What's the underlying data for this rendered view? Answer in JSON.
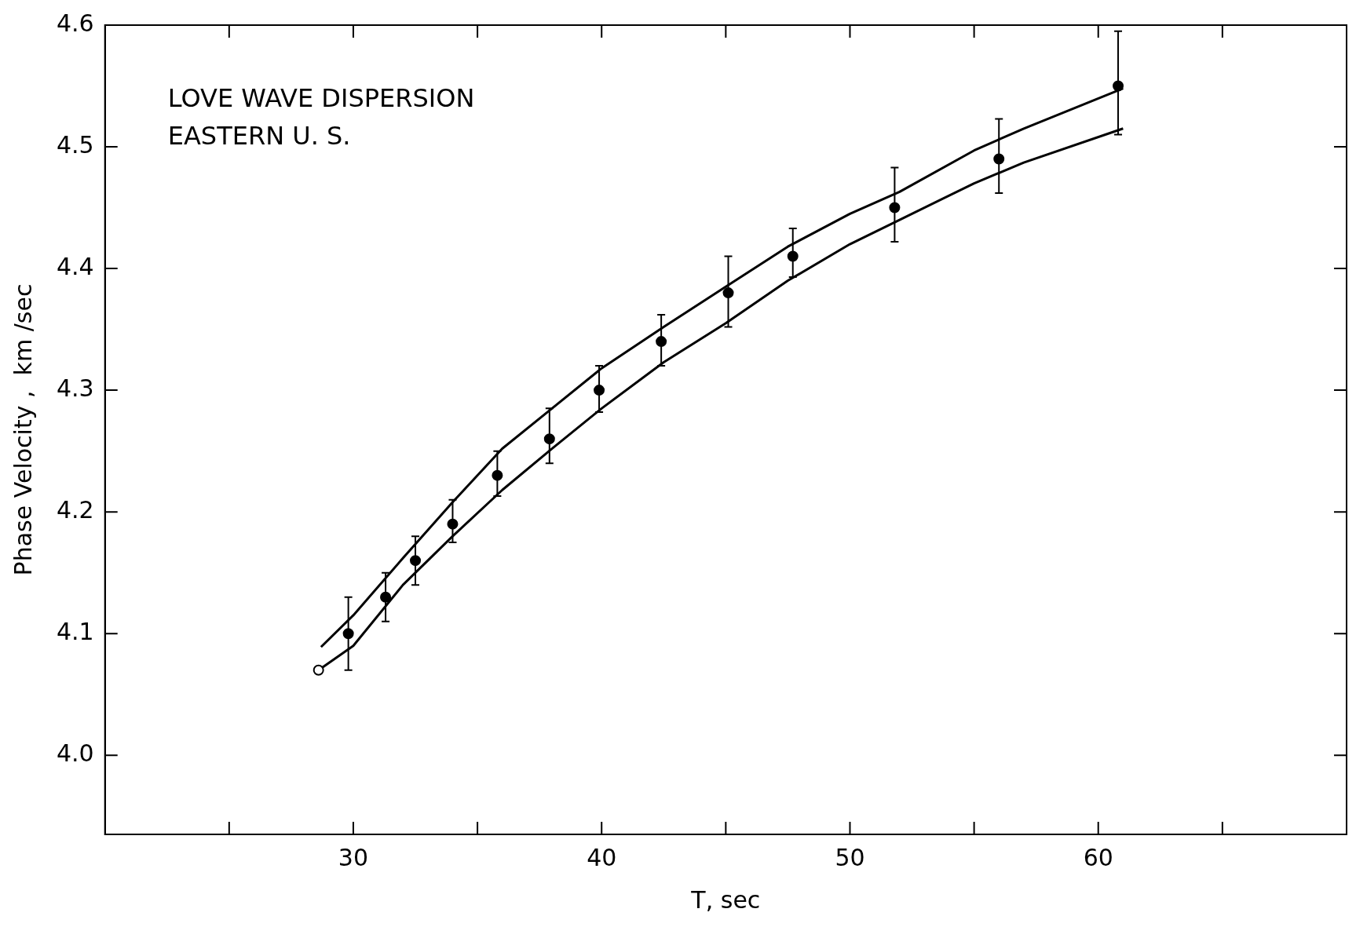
{
  "chart_data": {
    "type": "scatter",
    "xlabel": "T, sec",
    "ylabel": "Phase Velocity ,  km /sec",
    "annotations": [
      "LOVE WAVE DISPERSION",
      "EASTERN U. S."
    ],
    "xlim": [
      20,
      70
    ],
    "ylim": [
      3.935,
      4.6
    ],
    "xticks": [
      {
        "value": 25,
        "label": null
      },
      30,
      {
        "value": 35,
        "label": null
      },
      40,
      {
        "value": 45,
        "label": null
      },
      50,
      {
        "value": 55,
        "label": null
      },
      60,
      {
        "value": 65,
        "label": null
      }
    ],
    "yticks": [
      {
        "value": 4.0,
        "label": "4.0"
      },
      4.1,
      4.2,
      4.3,
      4.4,
      4.5,
      4.6
    ],
    "grid": false,
    "legend": false,
    "marker": "circle",
    "series": [
      {
        "color": "#000000",
        "x": [
          29.8,
          31.3,
          32.5,
          34.0,
          35.8,
          37.9,
          39.9,
          42.4,
          45.1,
          47.7,
          51.8,
          56.0,
          60.8
        ],
        "values": [
          4.1,
          4.13,
          4.16,
          4.19,
          4.23,
          4.26,
          4.3,
          4.34,
          4.38,
          4.41,
          4.45,
          4.49,
          4.55
        ],
        "errors": [
          [
            4.07,
            4.13
          ],
          [
            4.11,
            4.15
          ],
          [
            4.14,
            4.18
          ],
          [
            4.175,
            4.21
          ],
          [
            4.213,
            4.25
          ],
          [
            4.24,
            4.285
          ],
          [
            4.282,
            4.32
          ],
          [
            4.32,
            4.362
          ],
          [
            4.352,
            4.41
          ],
          [
            4.393,
            4.433
          ],
          [
            4.422,
            4.483
          ],
          [
            4.462,
            4.523
          ],
          [
            4.51,
            4.595
          ]
        ]
      },
      {
        "color": "#000000",
        "marker": "circle",
        "x": [
          28.6
        ],
        "values": [
          4.07
        ]
      },
      {
        "type": "line",
        "color": "#000000",
        "marker": "none",
        "x": [
          28.7,
          30,
          32,
          34,
          36,
          38,
          40,
          42.5,
          45,
          47.5,
          50,
          52,
          55,
          57,
          61
        ],
        "values": [
          4.089,
          4.115,
          4.162,
          4.208,
          4.252,
          4.285,
          4.318,
          4.352,
          4.385,
          4.418,
          4.445,
          4.463,
          4.497,
          4.515,
          4.548
        ]
      },
      {
        "type": "line",
        "color": "#000000",
        "marker": "none",
        "x": [
          28.6,
          30,
          32,
          34,
          36,
          38,
          40,
          42.5,
          45,
          47.5,
          50,
          52,
          55,
          57,
          61
        ],
        "values": [
          4.07,
          4.09,
          4.14,
          4.18,
          4.218,
          4.252,
          4.285,
          4.323,
          4.355,
          4.39,
          4.42,
          4.44,
          4.47,
          4.487,
          4.515
        ]
      }
    ]
  }
}
